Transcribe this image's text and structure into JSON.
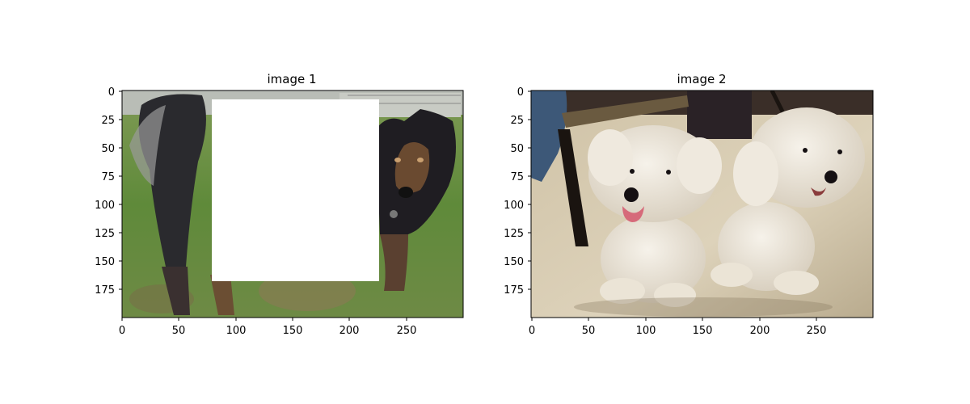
{
  "panels": [
    {
      "title": "image 1",
      "x_ticks": [
        "0",
        "50",
        "100",
        "150",
        "200",
        "250"
      ],
      "y_ticks": [
        "0",
        "25",
        "50",
        "75",
        "100",
        "125",
        "150",
        "175"
      ],
      "x_range": [
        0,
        300
      ],
      "y_range": [
        0,
        200
      ],
      "occlusion": {
        "x": [
          80,
          226
        ],
        "y": [
          8,
          168
        ],
        "color": "#ffffff"
      },
      "scene": "dogs-grass-photo"
    },
    {
      "title": "image 2",
      "x_ticks": [
        "0",
        "50",
        "100",
        "150",
        "200",
        "250"
      ],
      "y_ticks": [
        "0",
        "25",
        "50",
        "75",
        "100",
        "125",
        "150",
        "175"
      ],
      "x_range": [
        0,
        300
      ],
      "y_range": [
        0,
        200
      ],
      "scene": "two-white-poodles-photo"
    }
  ]
}
